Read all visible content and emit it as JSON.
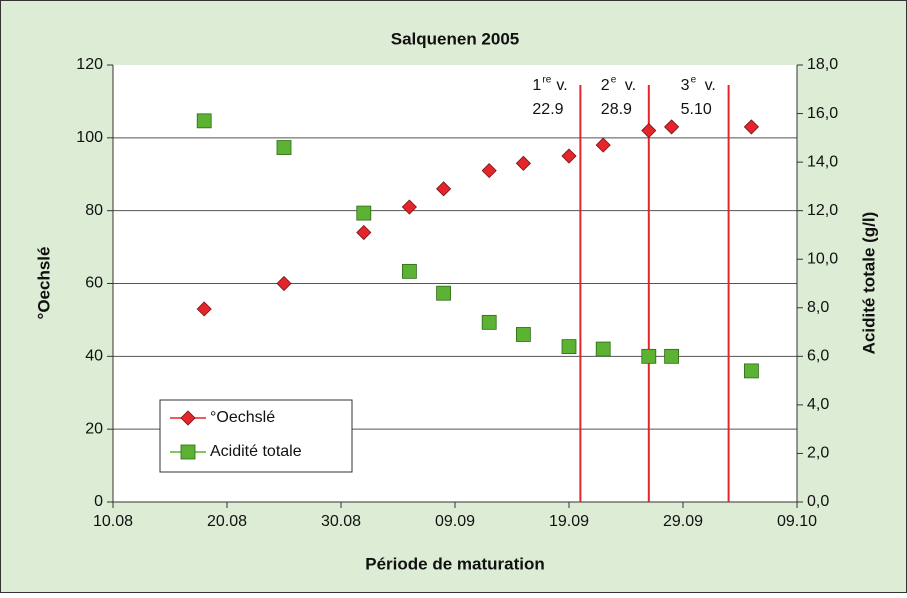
{
  "chart_data": {
    "type": "scatter",
    "title": "Salquenen 2005",
    "xlabel": "Période de maturation",
    "ylabel": "°Oechslé",
    "y2label": "Acidité totale (g/l)",
    "xlim": [
      "10.08",
      "09.10"
    ],
    "xticks": [
      "10.08",
      "20.08",
      "30.08",
      "09.09",
      "19.09",
      "29.09",
      "09.10"
    ],
    "ylim": [
      0,
      120
    ],
    "yticks": [
      0,
      20,
      40,
      60,
      80,
      100,
      120
    ],
    "y2lim": [
      0,
      18
    ],
    "y2ticks": [
      {
        "value": 0,
        "label": "0,0"
      },
      {
        "value": 2,
        "label": "2,0"
      },
      {
        "value": 4,
        "label": "4,0"
      },
      {
        "value": 6,
        "label": "6,0"
      },
      {
        "value": 8,
        "label": "8,0"
      },
      {
        "value": 10,
        "label": "10,0"
      },
      {
        "value": 12,
        "label": "12,0"
      },
      {
        "value": 14,
        "label": "14,0"
      },
      {
        "value": 16,
        "label": "16,0"
      },
      {
        "value": 18,
        "label": "18,0"
      }
    ],
    "grid": true,
    "legend": "lower left",
    "x": [
      "18.08",
      "25.08",
      "01.09",
      "05.09",
      "08.09",
      "12.09",
      "15.09",
      "19.09",
      "22.09",
      "26.09",
      "28.09",
      "05.10"
    ],
    "series": [
      {
        "name": "°Oechslé",
        "color": "#e3262b",
        "marker": "diamond",
        "values": [
          53,
          60,
          74,
          81,
          86,
          91,
          93,
          95,
          98,
          102,
          103,
          103
        ]
      },
      {
        "name": "Acidité totale",
        "color": "#5cb233",
        "marker": "square",
        "axis": "y2",
        "values": [
          15.7,
          14.6,
          11.9,
          9.5,
          8.6,
          7.4,
          6.9,
          6.4,
          6.3,
          6.0,
          6.0,
          5.4
        ]
      }
    ],
    "annotations": [
      {
        "x": "20.09",
        "ordinal": "1",
        "suffix": "re",
        "text": "v.",
        "date": "22.9"
      },
      {
        "x": "26.09",
        "ordinal": "2",
        "suffix": "e",
        "text": "v.",
        "date": "28.9"
      },
      {
        "x": "03.10",
        "ordinal": "3",
        "suffix": "e",
        "text": "v.",
        "date": "5.10"
      }
    ]
  }
}
